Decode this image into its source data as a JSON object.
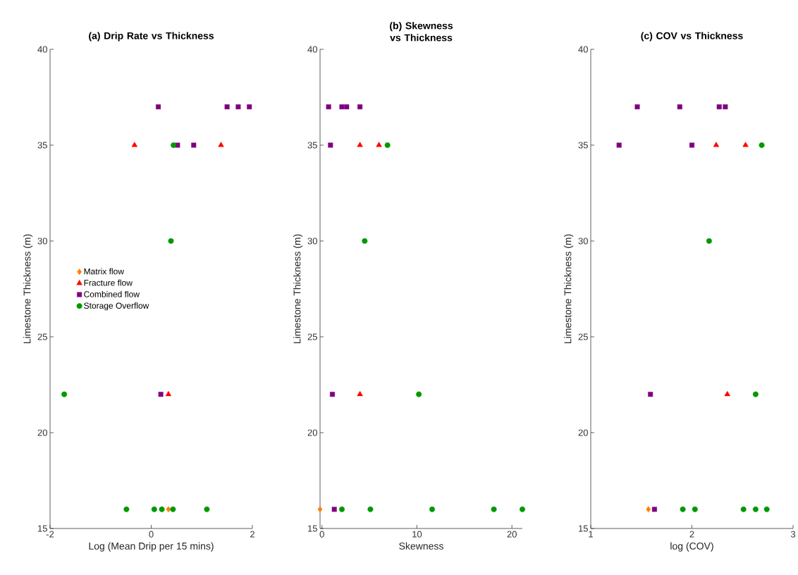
{
  "chart_data": [
    {
      "type": "scatter",
      "title": "(a) Drip Rate vs Thickness",
      "xlabel": "Log (Mean Drip per 15 mins)",
      "ylabel": "Limestone Thickness (m)",
      "xlim": [
        -2,
        2
      ],
      "xticks": [
        -2,
        0,
        2
      ],
      "ylim": [
        15,
        40
      ],
      "yticks": [
        15,
        20,
        25,
        30,
        35,
        40
      ],
      "grid": false,
      "legend": "left",
      "series": [
        {
          "name": "Matrix flow",
          "color": "#ff8000",
          "marker": "diamond",
          "x": [
            0.34
          ],
          "values": [
            16
          ]
        },
        {
          "name": "Fracture flow",
          "color": "#ff0000",
          "marker": "triangle",
          "x": [
            -0.33,
            1.38,
            0.34
          ],
          "values": [
            35,
            35,
            22
          ]
        },
        {
          "name": "Combined flow",
          "color": "#7e0080",
          "marker": "square",
          "x": [
            0.14,
            1.5,
            1.72,
            1.94,
            0.52,
            0.84,
            0.19
          ],
          "values": [
            37,
            37,
            37,
            37,
            35,
            35,
            22
          ]
        },
        {
          "name": "Storage Overflow",
          "color": "#009900",
          "marker": "circle",
          "x": [
            0.44,
            0.39,
            -1.72,
            -0.49,
            0.06,
            0.21,
            0.43,
            1.1
          ],
          "values": [
            35,
            30,
            22,
            16,
            16,
            16,
            16,
            16
          ]
        }
      ]
    },
    {
      "type": "scatter",
      "title": "(b) Skewness vs Thickness",
      "xlabel": "Skewness",
      "ylabel": "Limestone Thickness (m)",
      "xlim": [
        -0.2,
        21.1
      ],
      "xticks": [
        0,
        10,
        20
      ],
      "ylim": [
        15,
        40
      ],
      "yticks": [
        15,
        20,
        25,
        30,
        35,
        40
      ],
      "grid": false,
      "series": [
        {
          "color": "#ff8000",
          "marker": "diamond",
          "x": [
            -0.2
          ],
          "values": [
            16
          ]
        },
        {
          "color": "#ff0000",
          "marker": "triangle",
          "x": [
            4.0,
            6.0,
            4.0
          ],
          "values": [
            35,
            35,
            22
          ]
        },
        {
          "color": "#7e0080",
          "marker": "square",
          "x": [
            0.7,
            2.1,
            2.6,
            4.0,
            0.9,
            1.1,
            1.3
          ],
          "values": [
            37,
            37,
            37,
            37,
            35,
            22,
            16
          ]
        },
        {
          "color": "#009900",
          "marker": "circle",
          "x": [
            6.9,
            4.5,
            10.2,
            2.1,
            5.1,
            11.6,
            18.1,
            21.1
          ],
          "values": [
            35,
            30,
            22,
            16,
            16,
            16,
            16,
            16
          ]
        }
      ]
    },
    {
      "type": "scatter",
      "title": "(c) COV vs Thickness",
      "xlabel": "log (COV)",
      "ylabel": "Limestone Thickness (m)",
      "xlim": [
        1,
        3
      ],
      "xticks": [
        1,
        2,
        3
      ],
      "ylim": [
        15,
        40
      ],
      "yticks": [
        15,
        20,
        25,
        30,
        35,
        40
      ],
      "grid": false,
      "series": [
        {
          "color": "#ff8000",
          "marker": "diamond",
          "x": [
            1.57
          ],
          "values": [
            16
          ]
        },
        {
          "color": "#ff0000",
          "marker": "triangle",
          "x": [
            2.24,
            2.53,
            2.35
          ],
          "values": [
            35,
            35,
            22
          ]
        },
        {
          "color": "#7e0080",
          "marker": "square",
          "x": [
            1.46,
            1.88,
            2.27,
            2.33,
            1.28,
            2.0,
            1.59,
            1.63
          ],
          "values": [
            37,
            37,
            37,
            37,
            35,
            35,
            22,
            16
          ]
        },
        {
          "color": "#009900",
          "marker": "circle",
          "x": [
            2.69,
            2.17,
            2.63,
            1.91,
            2.03,
            2.51,
            2.63,
            2.74
          ],
          "values": [
            35,
            30,
            22,
            16,
            16,
            16,
            16,
            16
          ]
        }
      ]
    }
  ]
}
